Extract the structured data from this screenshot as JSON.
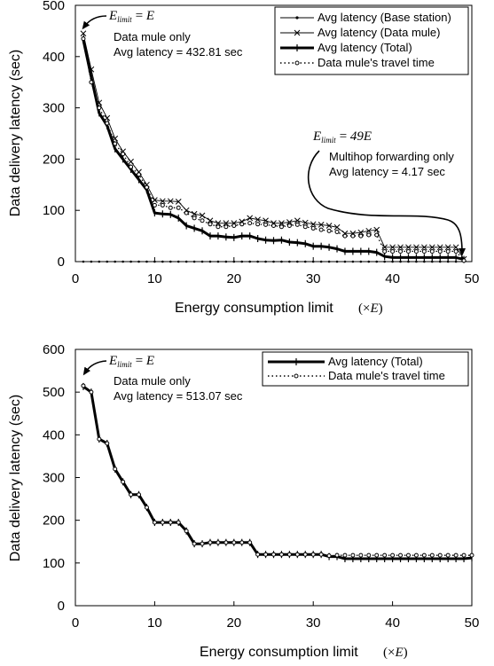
{
  "chart_data": [
    {
      "type": "line",
      "xlabel": "Energy consumption limit",
      "xlabel_unit_symbol": "(×E)",
      "ylabel": "Data delivery latency (sec)",
      "xlim": [
        0,
        50
      ],
      "ylim": [
        0,
        500
      ],
      "xticks": [
        0,
        10,
        20,
        30,
        40,
        50
      ],
      "yticks": [
        0,
        100,
        200,
        300,
        400,
        500
      ],
      "legend_position": "top-right",
      "x": [
        1,
        2,
        3,
        4,
        5,
        6,
        7,
        8,
        9,
        10,
        11,
        12,
        13,
        14,
        15,
        16,
        17,
        18,
        19,
        20,
        21,
        22,
        23,
        24,
        25,
        26,
        27,
        28,
        29,
        30,
        31,
        32,
        33,
        34,
        35,
        36,
        37,
        38,
        39,
        40,
        41,
        42,
        43,
        44,
        45,
        46,
        47,
        48,
        49
      ],
      "series": [
        {
          "name": "Avg latency (Base station)",
          "marker": "dot",
          "line": "thin",
          "values": [
            0,
            0,
            0,
            0,
            0,
            0,
            0,
            0,
            0,
            0,
            0,
            0,
            0,
            0,
            0,
            0,
            0,
            0,
            0,
            0,
            0,
            0,
            0,
            0,
            0,
            0,
            0,
            0,
            0,
            0,
            0,
            0,
            0,
            0,
            0,
            0,
            0,
            0,
            0,
            0,
            0,
            0,
            0,
            0,
            0,
            0,
            0,
            0,
            0
          ]
        },
        {
          "name": "Avg latency (Data mule)",
          "marker": "x",
          "line": "thin",
          "values": [
            445,
            375,
            310,
            280,
            240,
            215,
            195,
            175,
            150,
            120,
            118,
            118,
            117,
            100,
            93,
            90,
            80,
            75,
            75,
            75,
            78,
            85,
            82,
            80,
            75,
            75,
            77,
            80,
            76,
            73,
            72,
            70,
            67,
            55,
            55,
            57,
            60,
            62,
            28,
            28,
            28,
            28,
            28,
            28,
            28,
            28,
            28,
            28,
            5
          ]
        },
        {
          "name": "Avg latency (Total)",
          "marker": "plus",
          "line": "thick",
          "values": [
            432.81,
            360,
            290,
            265,
            220,
            200,
            180,
            160,
            140,
            95,
            93,
            92,
            85,
            70,
            65,
            60,
            50,
            50,
            48,
            47,
            50,
            50,
            45,
            42,
            41,
            42,
            38,
            37,
            35,
            30,
            30,
            28,
            25,
            20,
            20,
            20,
            20,
            18,
            10,
            8,
            8,
            8,
            8,
            8,
            8,
            8,
            8,
            8,
            4.17
          ]
        },
        {
          "name": "Data mule's travel time",
          "marker": "circle",
          "line": "dotted",
          "values": [
            435,
            350,
            300,
            270,
            230,
            210,
            185,
            170,
            145,
            110,
            110,
            105,
            105,
            95,
            85,
            80,
            73,
            68,
            68,
            70,
            73,
            75,
            73,
            72,
            70,
            68,
            70,
            72,
            68,
            65,
            62,
            60,
            58,
            50,
            50,
            50,
            52,
            52,
            20,
            20,
            20,
            20,
            20,
            20,
            20,
            20,
            20,
            20,
            2
          ]
        }
      ],
      "annotations": [
        {
          "math_var": "E",
          "math_sub": "limit",
          "math_eq": "=",
          "math_rhs": "E",
          "lines": [
            "Data mule only",
            "Avg latency = 432.81 sec"
          ]
        },
        {
          "math_var": "E",
          "math_sub": "limit",
          "math_eq": "=",
          "math_rhs": "49E",
          "lines": [
            "Multihop forwarding only",
            "Avg latency = 4.17 sec"
          ]
        }
      ]
    },
    {
      "type": "line",
      "xlabel": "Energy consumption limit",
      "xlabel_unit_symbol": "(×E)",
      "ylabel": "Data delivery latency (sec)",
      "xlim": [
        0,
        50
      ],
      "ylim": [
        0,
        600
      ],
      "xticks": [
        0,
        10,
        20,
        30,
        40,
        50
      ],
      "yticks": [
        0,
        100,
        200,
        300,
        400,
        500,
        600
      ],
      "legend_position": "top-right",
      "x": [
        1,
        2,
        3,
        4,
        5,
        6,
        7,
        8,
        9,
        10,
        11,
        12,
        13,
        14,
        15,
        16,
        17,
        18,
        19,
        20,
        21,
        22,
        23,
        24,
        25,
        26,
        27,
        28,
        29,
        30,
        31,
        32,
        33,
        34,
        35,
        36,
        37,
        38,
        39,
        40,
        41,
        42,
        43,
        44,
        45,
        46,
        47,
        48,
        49,
        50
      ],
      "series": [
        {
          "name": "Avg latency (Total)",
          "marker": "plus",
          "line": "thick",
          "values": [
            513.07,
            500,
            390,
            380,
            320,
            290,
            260,
            260,
            230,
            195,
            195,
            195,
            195,
            175,
            145,
            145,
            148,
            148,
            148,
            148,
            148,
            148,
            120,
            120,
            120,
            120,
            120,
            120,
            120,
            120,
            120,
            115,
            115,
            110,
            110,
            110,
            110,
            110,
            110,
            110,
            110,
            110,
            110,
            110,
            110,
            110,
            110,
            110,
            110,
            112
          ]
        },
        {
          "name": "Data mule's travel time",
          "marker": "circle",
          "line": "dotted",
          "values": [
            515,
            500,
            390,
            380,
            320,
            290,
            260,
            260,
            230,
            195,
            195,
            195,
            195,
            175,
            145,
            145,
            148,
            148,
            148,
            148,
            148,
            148,
            120,
            120,
            120,
            120,
            120,
            120,
            120,
            120,
            120,
            117,
            118,
            118,
            118,
            118,
            118,
            118,
            118,
            118,
            118,
            118,
            118,
            118,
            118,
            118,
            118,
            118,
            118,
            118
          ]
        }
      ],
      "annotations": [
        {
          "math_var": "E",
          "math_sub": "limit",
          "math_eq": "=",
          "math_rhs": "E",
          "lines": [
            "Data mule only",
            "Avg latency = 513.07 sec"
          ]
        }
      ]
    }
  ]
}
